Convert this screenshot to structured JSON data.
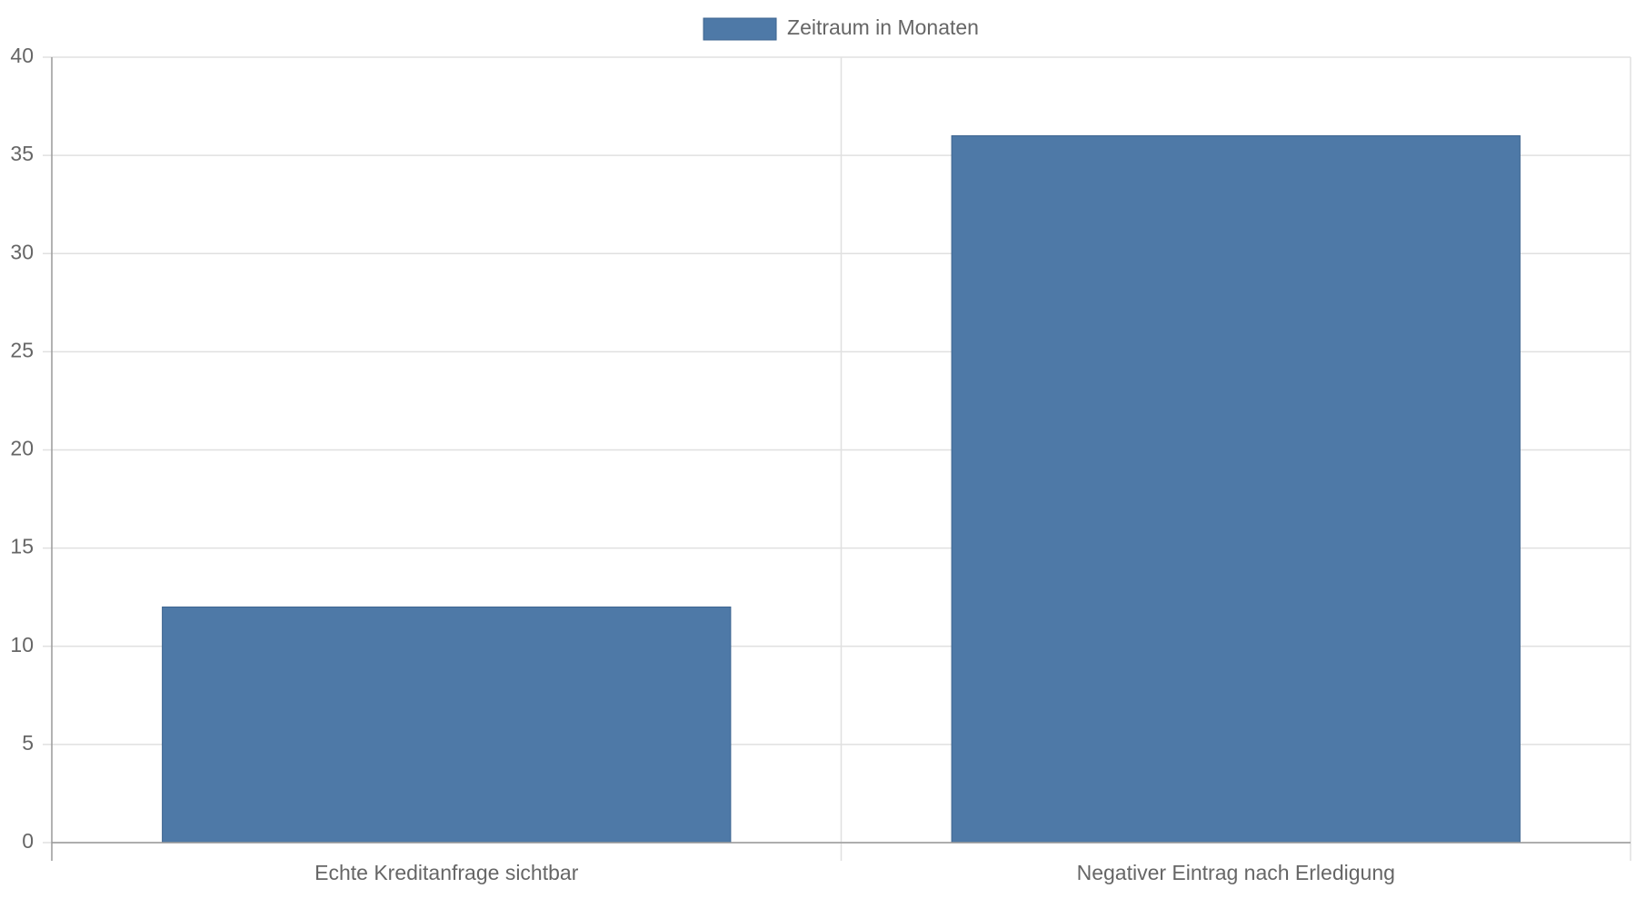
{
  "chart_data": {
    "type": "bar",
    "categories": [
      "Echte Kreditanfrage sichtbar",
      "Negativer Eintrag nach Erledigung"
    ],
    "series": [
      {
        "name": "Zeitraum in Monaten",
        "color": "#4e79a7",
        "values": [
          12,
          36
        ]
      }
    ],
    "ylim": [
      0,
      40
    ],
    "yticks": [
      0,
      5,
      10,
      15,
      20,
      25,
      30,
      35,
      40
    ],
    "grid": true,
    "legend": "top"
  }
}
